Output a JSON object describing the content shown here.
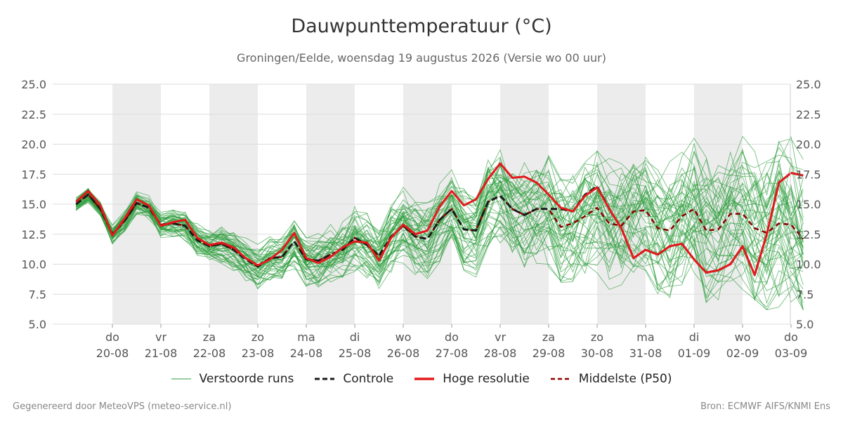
{
  "header": {
    "title": "Dauwpunttemperatuur (°C)",
    "subtitle": "Groningen/Eelde, woensdag 19 augustus 2026 (Versie wo 00 uur)"
  },
  "footer": {
    "left": "Gegenereerd door MeteoVPS (meteo-service.nl)",
    "right": "Bron: ECMWF AIFS/KNMI Ens"
  },
  "chart_data": {
    "type": "line",
    "title": "Dauwpunttemperatuur (°C)",
    "ylim": [
      5.0,
      25.0
    ],
    "y_ticks": [
      "5.0",
      "7.5",
      "10.0",
      "12.5",
      "15.0",
      "17.5",
      "20.0",
      "22.5",
      "25.0"
    ],
    "x_ticks": [
      {
        "day": "do",
        "date": "20-08"
      },
      {
        "day": "vr",
        "date": "21-08"
      },
      {
        "day": "za",
        "date": "22-08"
      },
      {
        "day": "zo",
        "date": "23-08"
      },
      {
        "day": "ma",
        "date": "24-08"
      },
      {
        "day": "di",
        "date": "25-08"
      },
      {
        "day": "wo",
        "date": "26-08"
      },
      {
        "day": "do",
        "date": "27-08"
      },
      {
        "day": "vr",
        "date": "28-08"
      },
      {
        "day": "za",
        "date": "29-08"
      },
      {
        "day": "zo",
        "date": "30-08"
      },
      {
        "day": "ma",
        "date": "31-08"
      },
      {
        "day": "di",
        "date": "01-09"
      },
      {
        "day": "wo",
        "date": "02-09"
      },
      {
        "day": "do",
        "date": "03-09"
      }
    ],
    "x_day_range": [
      -0.75,
      14.0
    ],
    "grid": true,
    "shaded_days": [
      0,
      2,
      4,
      6,
      8,
      10,
      12
    ],
    "colors": {
      "ensemble": "#2e9e3e",
      "control": "#1a1a1a",
      "high_res": "#e31a1c",
      "p50": "#8b0000",
      "shade": "#ececec",
      "grid": "#dddddd"
    },
    "legend_position": "bottom",
    "series": [
      {
        "name": "Hoge resolutie",
        "step_days": 0.25,
        "start_day": -0.75,
        "values": [
          15.2,
          16.1,
          14.9,
          12.4,
          13.8,
          15.4,
          14.9,
          13.2,
          13.5,
          13.7,
          12.2,
          11.6,
          11.8,
          11.4,
          10.5,
          9.9,
          10.4,
          11.2,
          12.6,
          10.5,
          10.1,
          10.6,
          11.4,
          11.9,
          11.8,
          10.3,
          12.2,
          13.3,
          12.5,
          12.8,
          14.8,
          16.1,
          14.9,
          15.4,
          17.1,
          18.4,
          17.2,
          17.3,
          16.8,
          15.8,
          14.7,
          14.4,
          15.7,
          16.4,
          14.6,
          13.0,
          10.5,
          11.2,
          10.8,
          11.5,
          11.7,
          10.4,
          9.3,
          9.5,
          10.0,
          11.5,
          9.1,
          12.5,
          16.8,
          17.6,
          17.4
        ]
      },
      {
        "name": "Controle",
        "step_days": 0.25,
        "start_day": -0.75,
        "values": [
          15.0,
          15.8,
          14.6,
          12.5,
          13.6,
          15.1,
          14.7,
          13.3,
          13.4,
          13.2,
          12.0,
          11.5,
          11.7,
          11.2,
          10.4,
          9.8,
          10.5,
          10.6,
          11.9,
          10.4,
          10.3,
          10.8,
          11.2,
          12.2,
          11.6,
          10.7,
          12.3,
          13.2,
          12.3,
          12.1,
          13.7,
          14.6,
          12.9,
          12.8,
          15.2,
          15.7,
          14.6,
          14.1,
          14.6,
          14.6,
          14.6,
          14.4,
          15.8,
          16.5,
          14.6,
          13.0,
          10.5,
          11.2,
          10.8,
          11.5,
          11.7,
          10.4,
          9.3,
          9.5,
          10.0,
          11.5,
          9.1,
          12.5,
          16.8,
          17.6,
          17.4
        ]
      },
      {
        "name": "Middelste (P50)",
        "step_days": 0.25,
        "start_day": -0.75,
        "values": [
          15.0,
          15.8,
          14.6,
          12.5,
          13.6,
          15.1,
          14.7,
          13.3,
          13.4,
          13.2,
          12.0,
          11.5,
          11.7,
          11.2,
          10.4,
          9.8,
          10.5,
          10.6,
          11.9,
          10.4,
          10.3,
          10.8,
          11.2,
          12.2,
          11.6,
          10.7,
          12.3,
          13.2,
          12.3,
          12.1,
          13.7,
          14.6,
          12.9,
          12.8,
          15.2,
          15.7,
          14.6,
          14.1,
          14.6,
          14.6,
          13.1,
          13.4,
          14.0,
          14.7,
          13.4,
          13.2,
          14.4,
          14.5,
          13.0,
          12.8,
          14.0,
          14.6,
          12.8,
          12.9,
          14.2,
          14.2,
          13.0,
          12.6,
          13.4,
          13.3,
          12.1
        ]
      },
      {
        "name": "Verstoorde runs",
        "note_members": "50 members; spread grows from ~1 °C at start to ~10 °C at end",
        "spread_start": 0.9,
        "spread_end": 11.0
      }
    ]
  },
  "legend": {
    "items": [
      {
        "label": "Verstoorde runs"
      },
      {
        "label": "Controle"
      },
      {
        "label": "Hoge resolutie"
      },
      {
        "label": "Middelste (P50)"
      }
    ]
  }
}
